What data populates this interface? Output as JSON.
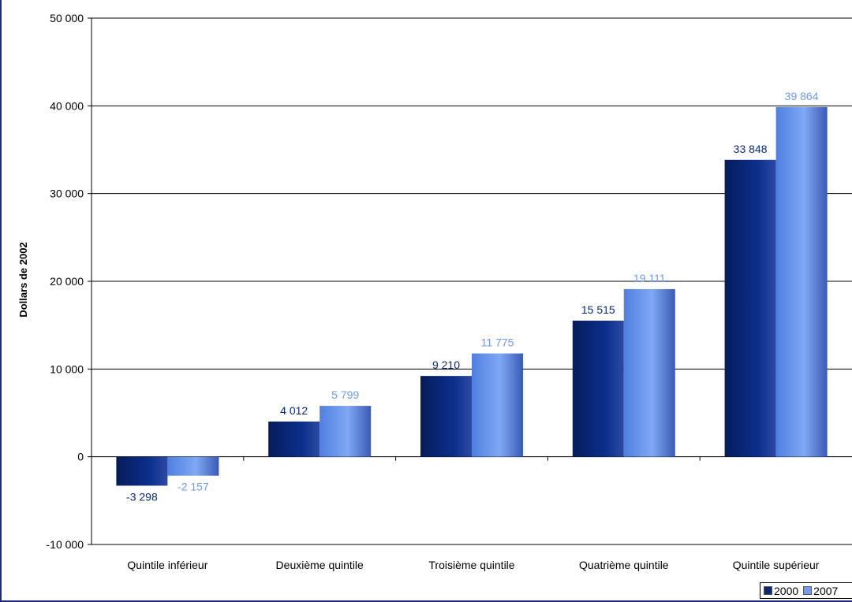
{
  "chart_data": {
    "type": "bar",
    "ylabel": "Dollars de 2002",
    "ylim": [
      -10000,
      50000
    ],
    "yticks": [
      -10000,
      0,
      10000,
      20000,
      30000,
      40000,
      50000
    ],
    "ytick_labels": [
      "-10 000",
      "0",
      "10 000",
      "20 000",
      "30 000",
      "40 000",
      "50 000"
    ],
    "grid": true,
    "legend_position": "bottom-right",
    "categories": [
      "Quintile inférieur",
      "Deuxième quintile",
      "Troisième quintile",
      "Quatrième quintile",
      "Quintile supérieur"
    ],
    "series": [
      {
        "name": "2000",
        "color": "#0a2a78",
        "values": [
          -3298,
          4012,
          9210,
          15515,
          33848
        ],
        "labels": [
          "-3 298",
          "4 012",
          "9 210",
          "15 515",
          "33 848"
        ]
      },
      {
        "name": "2007",
        "color": "#6f9bf0",
        "values": [
          -2157,
          5799,
          11775,
          19111,
          39864
        ],
        "labels": [
          "-2 157",
          "5 799",
          "11 775",
          "19 111",
          "39 864"
        ]
      }
    ]
  }
}
